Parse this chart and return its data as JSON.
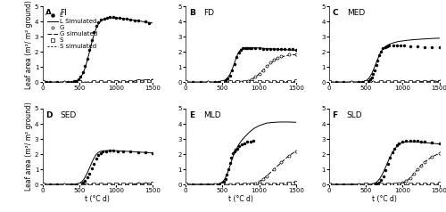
{
  "ylim": [
    0,
    5
  ],
  "xlim": [
    0,
    1500
  ],
  "yticks": [
    0,
    1,
    2,
    3,
    4,
    5
  ],
  "xticks": [
    0,
    500,
    1000,
    1500
  ],
  "ylabel_left": "Leaf area (m²/ m² ground)",
  "xlabel": "t (°C d)",
  "FI": {
    "L_obs_x": [
      0,
      50,
      100,
      200,
      300,
      350,
      400,
      430,
      460,
      490,
      520,
      550,
      580,
      610,
      640,
      670,
      700,
      730,
      760,
      800,
      840,
      880,
      920,
      960,
      1000,
      1050,
      1100,
      1150,
      1200,
      1250,
      1300,
      1400,
      1450
    ],
    "L_obs_y": [
      0,
      0,
      0,
      0,
      0,
      0,
      0.02,
      0.05,
      0.1,
      0.2,
      0.38,
      0.65,
      1.05,
      1.55,
      2.1,
      2.75,
      3.3,
      3.7,
      3.95,
      4.1,
      4.2,
      4.25,
      4.28,
      4.28,
      4.25,
      4.22,
      4.2,
      4.18,
      4.12,
      4.08,
      4.05,
      3.98,
      3.9
    ],
    "L_sim_x": [
      0,
      200,
      350,
      400,
      430,
      460,
      490,
      520,
      550,
      580,
      610,
      640,
      670,
      700,
      730,
      760,
      800,
      850,
      900,
      1000,
      1100,
      1200,
      1300,
      1400,
      1500
    ],
    "L_sim_y": [
      0,
      0,
      0,
      0.01,
      0.02,
      0.06,
      0.14,
      0.3,
      0.56,
      0.92,
      1.42,
      1.98,
      2.58,
      3.1,
      3.52,
      3.82,
      4.05,
      4.18,
      4.23,
      4.25,
      4.2,
      4.12,
      4.05,
      3.97,
      3.9
    ],
    "G_obs_x": [
      0,
      300,
      500,
      700,
      800,
      900,
      1000,
      1100,
      1200,
      1300,
      1400,
      1500
    ],
    "G_obs_y": [
      0,
      0,
      0,
      0,
      0,
      0,
      0,
      0.02,
      0.04,
      0.07,
      0.1,
      0.13
    ],
    "G_sim_x": [
      0,
      500,
      700,
      800,
      900,
      1000,
      1100,
      1200,
      1300,
      1400,
      1500
    ],
    "G_sim_y": [
      0,
      0,
      0,
      0,
      0,
      0.01,
      0.03,
      0.06,
      0.1,
      0.14,
      0.18
    ],
    "S_obs_x": [
      0,
      500,
      700,
      800,
      900,
      1000,
      1100,
      1200,
      1300,
      1400,
      1500
    ],
    "S_obs_y": [
      0,
      0,
      0,
      0,
      0,
      0,
      0.01,
      0.03,
      0.05,
      0.08,
      0.1
    ],
    "S_sim_x": [
      0,
      500,
      700,
      800,
      900,
      1000,
      1100,
      1200,
      1300,
      1400,
      1500
    ],
    "S_sim_y": [
      0,
      0,
      0,
      0,
      0,
      0.005,
      0.015,
      0.03,
      0.05,
      0.07,
      0.09
    ]
  },
  "FD": {
    "L_obs_x": [
      0,
      100,
      200,
      300,
      400,
      450,
      480,
      510,
      540,
      570,
      600,
      630,
      660,
      690,
      720,
      750,
      780,
      810,
      840,
      870,
      900,
      950,
      1000,
      1050,
      1100,
      1150,
      1200,
      1250,
      1300,
      1350,
      1400,
      1450,
      1500
    ],
    "L_obs_y": [
      0,
      0,
      0,
      0,
      0,
      0.01,
      0.03,
      0.07,
      0.14,
      0.25,
      0.45,
      0.78,
      1.2,
      1.65,
      1.98,
      2.15,
      2.22,
      2.25,
      2.26,
      2.26,
      2.25,
      2.23,
      2.22,
      2.21,
      2.2,
      2.19,
      2.18,
      2.18,
      2.17,
      2.17,
      2.16,
      2.16,
      2.15
    ],
    "L_sim_x": [
      0,
      200,
      350,
      400,
      450,
      480,
      510,
      540,
      570,
      600,
      630,
      660,
      690,
      720,
      750,
      780,
      810,
      870,
      930,
      1000,
      1100,
      1200,
      1300,
      1400,
      1500
    ],
    "L_sim_y": [
      0,
      0,
      0,
      0,
      0.01,
      0.03,
      0.07,
      0.15,
      0.28,
      0.5,
      0.82,
      1.22,
      1.65,
      1.98,
      2.15,
      2.23,
      2.27,
      2.28,
      2.27,
      2.25,
      2.22,
      2.19,
      2.16,
      2.13,
      2.1
    ],
    "G_obs_x": [
      0,
      300,
      500,
      600,
      700,
      750,
      800,
      850,
      900,
      950,
      1000,
      1050,
      1100,
      1150,
      1200,
      1250,
      1300,
      1400,
      1500
    ],
    "G_obs_y": [
      0,
      0,
      0,
      0,
      0,
      0.01,
      0.03,
      0.08,
      0.18,
      0.35,
      0.55,
      0.8,
      1.05,
      1.28,
      1.48,
      1.62,
      1.72,
      1.82,
      1.85
    ],
    "G_sim_x": [
      0,
      300,
      500,
      600,
      700,
      750,
      800,
      850,
      900,
      950,
      1000,
      1050,
      1100,
      1150,
      1200,
      1250,
      1300,
      1400,
      1500
    ],
    "G_sim_y": [
      0,
      0,
      0,
      0,
      0,
      0.01,
      0.03,
      0.08,
      0.18,
      0.35,
      0.55,
      0.78,
      1.0,
      1.22,
      1.42,
      1.56,
      1.66,
      1.78,
      1.82
    ],
    "S_obs_x": [
      0,
      500,
      600,
      700,
      800,
      900,
      1000,
      1100,
      1200,
      1300,
      1400,
      1500
    ],
    "S_obs_y": [
      0,
      0,
      0,
      0,
      0,
      0,
      0,
      0.01,
      0.02,
      0.03,
      0.04,
      0.05
    ],
    "S_sim_x": [
      0,
      500,
      600,
      700,
      800,
      900,
      1000,
      1100,
      1200,
      1300,
      1400,
      1500
    ],
    "S_sim_y": [
      0,
      0,
      0,
      0,
      0,
      0,
      0.005,
      0.01,
      0.02,
      0.03,
      0.04,
      0.05
    ]
  },
  "MED": {
    "L_obs_x": [
      0,
      100,
      200,
      300,
      400,
      450,
      480,
      510,
      540,
      560,
      580,
      600,
      620,
      640,
      660,
      680,
      700,
      730,
      760,
      790,
      820,
      870,
      920,
      970,
      1020,
      1100,
      1200,
      1300,
      1400,
      1500
    ],
    "L_obs_y": [
      0,
      0,
      0,
      0,
      0,
      0.005,
      0.015,
      0.04,
      0.1,
      0.18,
      0.32,
      0.52,
      0.8,
      1.12,
      1.45,
      1.75,
      2.0,
      2.22,
      2.32,
      2.37,
      2.4,
      2.42,
      2.42,
      2.42,
      2.4,
      2.38,
      2.35,
      2.32,
      2.3,
      2.28
    ],
    "L_sim_x": [
      0,
      200,
      350,
      420,
      460,
      490,
      520,
      550,
      580,
      610,
      640,
      670,
      700,
      730,
      760,
      790,
      830,
      880,
      940,
      1000,
      1100,
      1200,
      1300,
      1400,
      1500
    ],
    "L_sim_y": [
      0,
      0,
      0,
      0.005,
      0.02,
      0.06,
      0.15,
      0.3,
      0.55,
      0.88,
      1.25,
      1.62,
      1.95,
      2.18,
      2.32,
      2.42,
      2.52,
      2.6,
      2.68,
      2.72,
      2.78,
      2.82,
      2.85,
      2.88,
      2.9
    ],
    "G_obs_x": [
      0,
      300,
      500,
      600,
      700,
      800,
      900,
      1000,
      1100,
      1200,
      1300,
      1400,
      1500
    ],
    "G_obs_y": [
      0,
      0,
      0,
      0,
      0,
      0,
      0,
      0,
      0.01,
      0.02,
      0.04,
      0.06,
      0.08
    ],
    "G_sim_x": [
      0,
      300,
      500,
      600,
      700,
      800,
      900,
      1000,
      1100,
      1200,
      1300,
      1400,
      1500
    ],
    "G_sim_y": [
      0,
      0,
      0,
      0,
      0,
      0,
      0,
      0.005,
      0.01,
      0.025,
      0.04,
      0.06,
      0.08
    ],
    "S_obs_x": [
      0,
      500,
      700,
      800,
      900,
      1000,
      1100,
      1200,
      1300,
      1400,
      1500
    ],
    "S_obs_y": [
      0,
      0,
      0,
      0,
      0,
      0,
      0.005,
      0.01,
      0.02,
      0.03,
      0.04
    ],
    "S_sim_x": [
      0,
      500,
      700,
      800,
      900,
      1000,
      1100,
      1200,
      1300,
      1400,
      1500
    ],
    "S_sim_y": [
      0,
      0,
      0,
      0,
      0,
      0.002,
      0.008,
      0.015,
      0.025,
      0.035,
      0.045
    ]
  },
  "SED": {
    "L_obs_x": [
      0,
      100,
      200,
      300,
      400,
      450,
      490,
      520,
      550,
      580,
      610,
      640,
      670,
      700,
      730,
      760,
      790,
      820,
      870,
      920,
      970,
      1020,
      1100,
      1200,
      1300,
      1400,
      1500
    ],
    "L_obs_y": [
      0,
      0,
      0,
      0,
      0,
      0.005,
      0.02,
      0.05,
      0.12,
      0.25,
      0.45,
      0.72,
      1.05,
      1.38,
      1.7,
      1.95,
      2.08,
      2.15,
      2.2,
      2.22,
      2.22,
      2.2,
      2.18,
      2.15,
      2.12,
      2.1,
      2.08
    ],
    "L_sim_x": [
      0,
      200,
      350,
      420,
      460,
      490,
      520,
      550,
      580,
      610,
      640,
      670,
      700,
      730,
      760,
      790,
      840,
      900,
      960,
      1020,
      1100,
      1200,
      1300,
      1400,
      1500
    ],
    "L_sim_y": [
      0,
      0,
      0,
      0.005,
      0.015,
      0.045,
      0.12,
      0.25,
      0.46,
      0.75,
      1.08,
      1.42,
      1.72,
      1.96,
      2.1,
      2.18,
      2.22,
      2.24,
      2.24,
      2.22,
      2.2,
      2.17,
      2.14,
      2.11,
      2.08
    ],
    "G_obs_x": [
      0,
      300,
      500,
      600,
      700,
      800,
      900,
      1000,
      1100,
      1200,
      1300,
      1400,
      1500
    ],
    "G_obs_y": [
      0,
      0,
      0,
      0,
      0,
      0,
      0,
      0,
      0.01,
      0.02,
      0.04,
      0.06,
      0.08
    ],
    "G_sim_x": [
      0,
      300,
      500,
      600,
      700,
      800,
      900,
      1000,
      1100,
      1200,
      1300,
      1400,
      1500
    ],
    "G_sim_y": [
      0,
      0,
      0,
      0,
      0,
      0,
      0,
      0.005,
      0.01,
      0.025,
      0.04,
      0.06,
      0.08
    ],
    "S_obs_x": [
      0,
      500,
      700,
      800,
      900,
      1000,
      1100,
      1200,
      1300,
      1400,
      1500
    ],
    "S_obs_y": [
      0,
      0,
      0,
      0,
      0,
      0,
      0.005,
      0.01,
      0.02,
      0.03,
      0.04
    ],
    "S_sim_x": [
      0,
      500,
      700,
      800,
      900,
      1000,
      1100,
      1200,
      1300,
      1400,
      1500
    ],
    "S_sim_y": [
      0,
      0,
      0,
      0,
      0,
      0.002,
      0.008,
      0.015,
      0.025,
      0.035,
      0.045
    ]
  },
  "MLD": {
    "L_obs_x": [
      0,
      100,
      200,
      300,
      380,
      420,
      450,
      475,
      500,
      520,
      540,
      560,
      580,
      600,
      620,
      640,
      660,
      680,
      700,
      730,
      760,
      800,
      840,
      880,
      920
    ],
    "L_obs_y": [
      0,
      0,
      0,
      0,
      0,
      0.005,
      0.015,
      0.04,
      0.1,
      0.2,
      0.38,
      0.65,
      1.02,
      1.42,
      1.78,
      2.05,
      2.2,
      2.3,
      2.38,
      2.52,
      2.62,
      2.72,
      2.8,
      2.85,
      2.88
    ],
    "L_sim_x": [
      0,
      200,
      350,
      400,
      440,
      470,
      500,
      530,
      560,
      590,
      620,
      650,
      680,
      720,
      760,
      800,
      860,
      930,
      1000,
      1100,
      1200,
      1300,
      1400,
      1500
    ],
    "L_sim_y": [
      0,
      0,
      0,
      0.005,
      0.02,
      0.06,
      0.16,
      0.35,
      0.65,
      1.05,
      1.5,
      1.92,
      2.25,
      2.62,
      2.9,
      3.12,
      3.42,
      3.7,
      3.88,
      4.05,
      4.1,
      4.12,
      4.12,
      4.1
    ],
    "G_obs_x": [
      0,
      400,
      500,
      600,
      700,
      800,
      850,
      900,
      950,
      1000,
      1050,
      1100,
      1200,
      1300,
      1400,
      1500
    ],
    "G_obs_y": [
      0,
      0,
      0,
      0,
      0,
      0,
      0.01,
      0.03,
      0.08,
      0.18,
      0.35,
      0.55,
      1.0,
      1.45,
      1.88,
      2.2
    ],
    "G_sim_x": [
      0,
      400,
      500,
      600,
      700,
      800,
      850,
      900,
      950,
      1000,
      1050,
      1100,
      1200,
      1300,
      1400,
      1500
    ],
    "G_sim_y": [
      0,
      0,
      0,
      0,
      0,
      0,
      0.01,
      0.03,
      0.08,
      0.18,
      0.35,
      0.55,
      1.0,
      1.45,
      1.88,
      2.2
    ],
    "S_obs_x": [
      0,
      500,
      700,
      800,
      900,
      1000,
      1100,
      1200,
      1300,
      1400,
      1500
    ],
    "S_obs_y": [
      0,
      0,
      0,
      0,
      0,
      0,
      0,
      0.01,
      0.03,
      0.06,
      0.1
    ],
    "S_sim_x": [
      0,
      500,
      700,
      800,
      900,
      1000,
      1100,
      1200,
      1300,
      1400,
      1500
    ],
    "S_sim_y": [
      0,
      0,
      0,
      0,
      0,
      0,
      0.005,
      0.02,
      0.05,
      0.1,
      0.18
    ]
  },
  "SLD": {
    "L_obs_x": [
      0,
      100,
      200,
      300,
      400,
      500,
      580,
      620,
      650,
      680,
      710,
      740,
      770,
      800,
      830,
      860,
      890,
      920,
      950,
      1000,
      1050,
      1100,
      1150,
      1200,
      1250,
      1300,
      1400,
      1500
    ],
    "L_obs_y": [
      0,
      0,
      0,
      0,
      0,
      0,
      0.01,
      0.03,
      0.07,
      0.15,
      0.3,
      0.55,
      0.92,
      1.35,
      1.75,
      2.1,
      2.38,
      2.58,
      2.7,
      2.82,
      2.88,
      2.9,
      2.9,
      2.88,
      2.85,
      2.82,
      2.75,
      2.68
    ],
    "L_sim_x": [
      0,
      200,
      400,
      520,
      570,
      610,
      650,
      690,
      730,
      770,
      810,
      850,
      890,
      930,
      970,
      1010,
      1100,
      1200,
      1300,
      1400,
      1500
    ],
    "L_sim_y": [
      0,
      0,
      0,
      0.005,
      0.02,
      0.06,
      0.16,
      0.38,
      0.72,
      1.15,
      1.6,
      2.0,
      2.32,
      2.55,
      2.7,
      2.78,
      2.83,
      2.8,
      2.76,
      2.72,
      2.67
    ],
    "G_obs_x": [
      0,
      400,
      600,
      700,
      800,
      850,
      900,
      950,
      1000,
      1050,
      1100,
      1150,
      1200,
      1250,
      1300,
      1400,
      1500
    ],
    "G_obs_y": [
      0,
      0,
      0,
      0,
      0,
      0.005,
      0.015,
      0.04,
      0.1,
      0.22,
      0.42,
      0.68,
      0.98,
      1.25,
      1.48,
      1.82,
      2.05
    ],
    "G_sim_x": [
      0,
      400,
      600,
      700,
      800,
      850,
      900,
      950,
      1000,
      1050,
      1100,
      1150,
      1200,
      1250,
      1300,
      1400,
      1500
    ],
    "G_sim_y": [
      0,
      0,
      0,
      0,
      0,
      0.005,
      0.015,
      0.04,
      0.1,
      0.22,
      0.42,
      0.68,
      0.98,
      1.25,
      1.48,
      1.82,
      2.05
    ],
    "S_obs_x": [
      0,
      500,
      700,
      800,
      900,
      1000,
      1100,
      1200,
      1300,
      1400,
      1500
    ],
    "S_obs_y": [
      0,
      0,
      0,
      0,
      0,
      0,
      0.005,
      0.01,
      0.02,
      0.03,
      0.04
    ],
    "S_sim_x": [
      0,
      500,
      700,
      800,
      900,
      1000,
      1100,
      1200,
      1300,
      1400,
      1500
    ],
    "S_sim_y": [
      0,
      0,
      0,
      0,
      0,
      0.002,
      0.008,
      0.015,
      0.025,
      0.035,
      0.045
    ]
  },
  "panel_label_fontsize": 6.5,
  "axis_label_fontsize": 5.5,
  "tick_fontsize": 5,
  "legend_fontsize": 5,
  "marker_size": 2.2,
  "line_width": 0.7
}
